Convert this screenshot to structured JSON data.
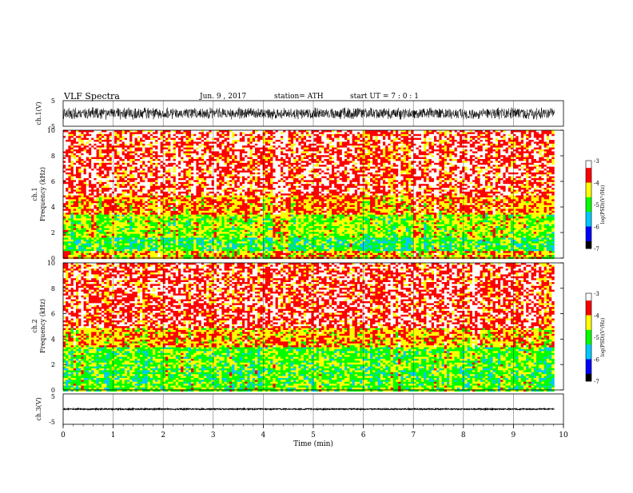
{
  "header": {
    "title": "VLF Spectra",
    "date": "Jun. 9 , 2017",
    "station": "station= ATH",
    "start": "start UT = 7 : 0 : 1"
  },
  "colors": {
    "background": "#ffffff",
    "axis": "#000000",
    "spectrogram_palette": [
      "#000000",
      "#0000ff",
      "#00c8ff",
      "#00ff00",
      "#ffff00",
      "#ff0000",
      "#ffffff"
    ]
  },
  "chart_data": [
    {
      "type": "line",
      "name": "ch1-waveform",
      "ylabel": "ch.1(V)",
      "ylim": [
        -5,
        5
      ],
      "yticks": [
        "5",
        "-5"
      ],
      "xlim": [
        0,
        10
      ],
      "x_extent": [
        0,
        9.82
      ],
      "amplitude": 2.5
    },
    {
      "type": "heatmap",
      "name": "ch1-spectrogram",
      "ylabel_line1": "ch.1",
      "ylabel_line2": "Frequency (kHz)",
      "ylim": [
        0,
        10
      ],
      "yticks": [
        "0",
        "2",
        "4",
        "6",
        "8",
        "10"
      ],
      "xlim": [
        0,
        10
      ],
      "x_extent": [
        0,
        9.82
      ],
      "colorbar": {
        "label": "log(PSD)(V²/Hz)",
        "range": [
          -7,
          -3
        ],
        "ticks": [
          "-3",
          "-4",
          "-5",
          "-6",
          "-7"
        ]
      },
      "bands": [
        {
          "f": [
            0,
            0.6
          ],
          "level": -4.2
        },
        {
          "f": [
            0.6,
            1.6
          ],
          "level": -5.0
        },
        {
          "f": [
            1.6,
            3.4
          ],
          "level": -4.6
        },
        {
          "f": [
            3.4,
            5.0
          ],
          "level": -4.0
        },
        {
          "f": [
            5.0,
            10.0
          ],
          "level": -3.5
        }
      ]
    },
    {
      "type": "heatmap",
      "name": "ch2-spectrogram",
      "ylabel_line1": "ch.2",
      "ylabel_line2": "Frequency (kHz)",
      "ylim": [
        0,
        10
      ],
      "yticks": [
        "0",
        "2",
        "4",
        "6",
        "8",
        "10"
      ],
      "xlim": [
        0,
        10
      ],
      "x_extent": [
        0,
        9.82
      ],
      "colorbar": {
        "label": "log(PSD)(V²/Hz)",
        "range": [
          -7,
          -3
        ],
        "ticks": [
          "-3",
          "-4",
          "-5",
          "-6",
          "-7"
        ]
      },
      "bands": [
        {
          "f": [
            0,
            0.6
          ],
          "level": -4.8
        },
        {
          "f": [
            0.6,
            1.8
          ],
          "level": -4.9
        },
        {
          "f": [
            1.8,
            3.4
          ],
          "level": -4.8
        },
        {
          "f": [
            3.4,
            5.0
          ],
          "level": -4.1
        },
        {
          "f": [
            5.0,
            10.0
          ],
          "level": -3.5
        }
      ]
    },
    {
      "type": "line",
      "name": "ch3-waveform",
      "ylabel": "ch.3(V)",
      "ylim": [
        -5,
        5
      ],
      "yticks": [
        "5",
        "-5"
      ],
      "xlim": [
        0,
        10
      ],
      "x_extent": [
        0,
        9.82
      ],
      "amplitude": 0.25
    }
  ],
  "x_axis": {
    "label": "Time (min)",
    "ticks": [
      "0",
      "1",
      "2",
      "3",
      "4",
      "5",
      "6",
      "7",
      "8",
      "9",
      "10"
    ]
  }
}
